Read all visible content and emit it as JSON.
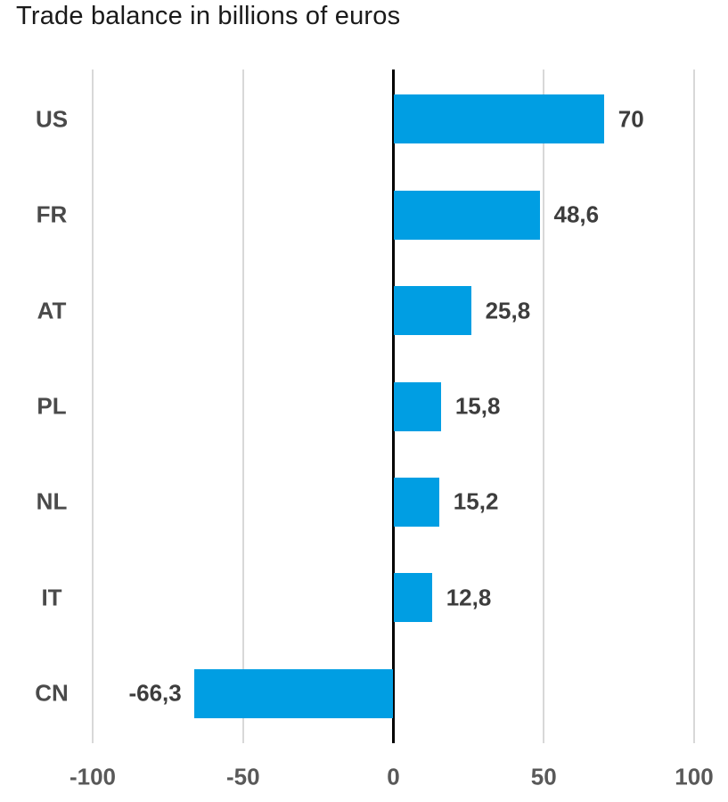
{
  "title": "Trade balance in billions of euros",
  "colors": {
    "bar": "#009EE3",
    "grid": "#d8d8d8",
    "zero_line": "#000000",
    "title_text": "#1a1a1a",
    "category_text": "#4a4a4a",
    "value_text": "#3d3d3d",
    "axis_text": "#595959",
    "background": "#ffffff"
  },
  "chart_data": {
    "type": "bar",
    "orientation": "horizontal",
    "title": "Trade balance in billions of euros",
    "categories": [
      "US",
      "FR",
      "AT",
      "PL",
      "NL",
      "IT",
      "CN"
    ],
    "values": [
      70,
      48.6,
      25.8,
      15.8,
      15.2,
      12.8,
      -66.3
    ],
    "value_labels": [
      "70",
      "48,6",
      "25,8",
      "15,8",
      "15,2",
      "12,8",
      "-66,3"
    ],
    "xlabel": "",
    "ylabel": "",
    "xlim": [
      -100,
      100
    ],
    "x_ticks": [
      -100,
      -50,
      0,
      50,
      100
    ],
    "x_tick_labels": [
      "-100",
      "-50",
      "0",
      "50",
      "100"
    ],
    "decimal_separator": ",",
    "grid": true,
    "legend": false,
    "zero_axis_emphasized": true,
    "unit": "billions of euros"
  }
}
